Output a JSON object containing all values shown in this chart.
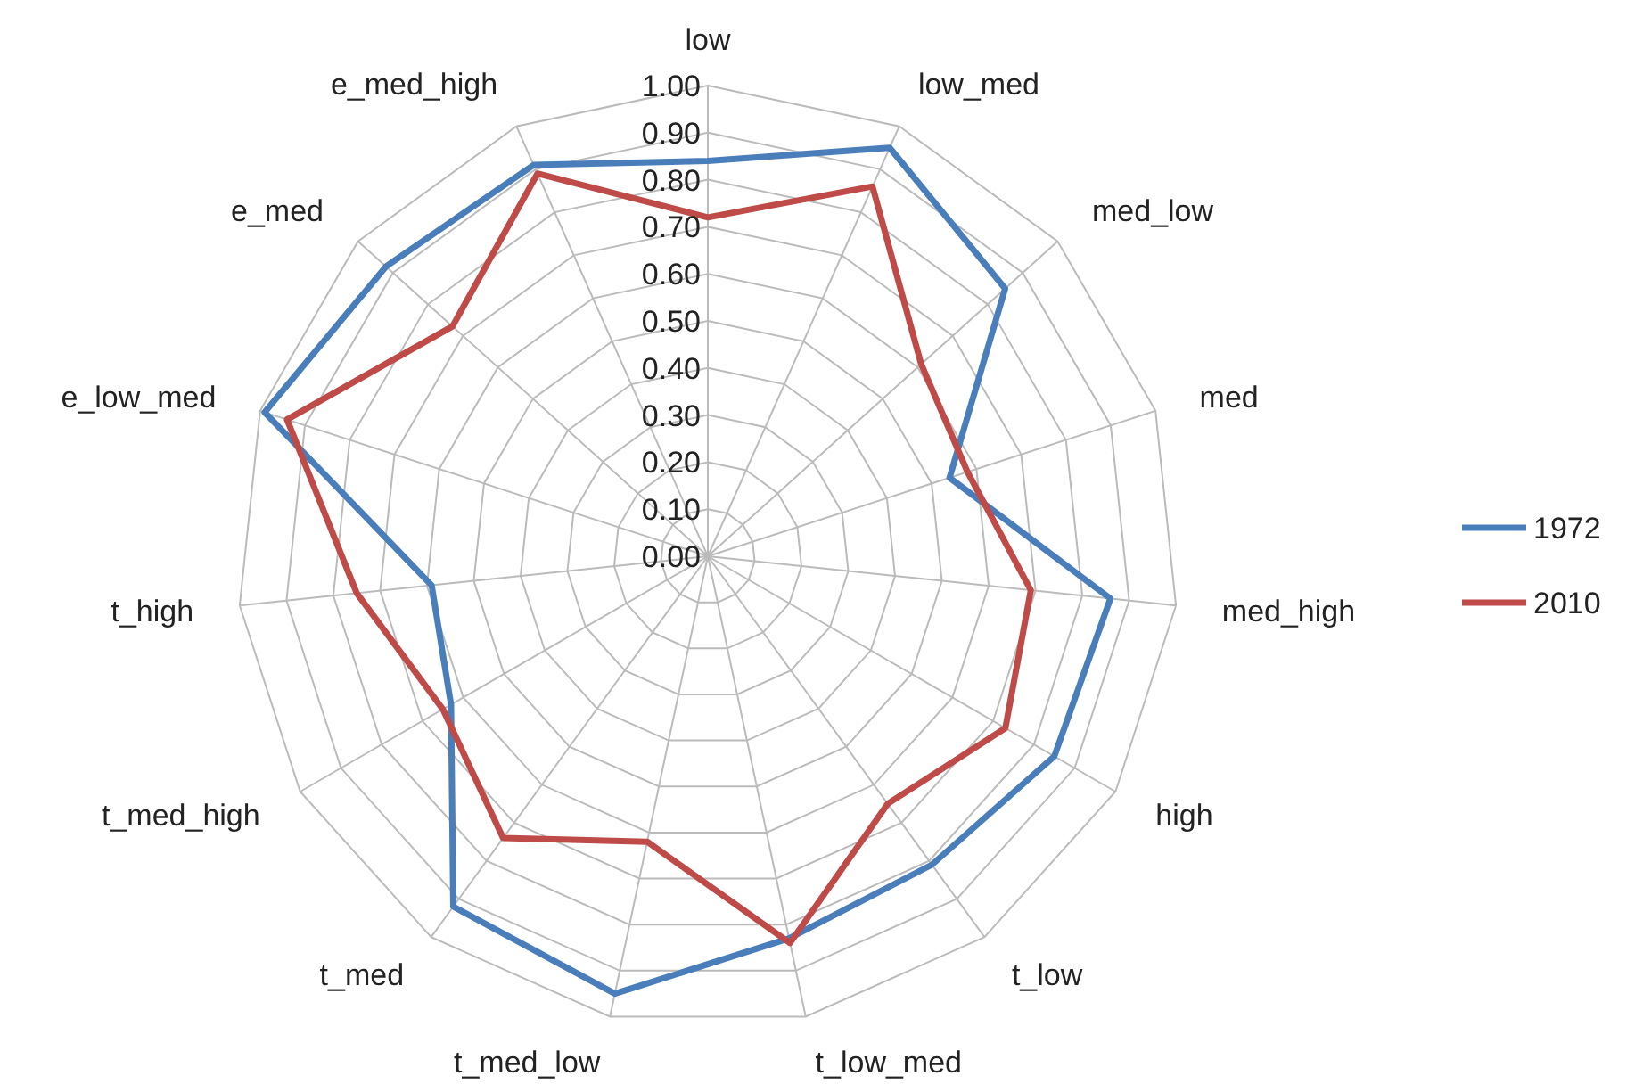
{
  "chart_data": {
    "type": "radar",
    "categories": [
      "low",
      "low_med",
      "med_low",
      "med",
      "med_high",
      "high",
      "t_low",
      "t_low_med",
      "t_med_low",
      "t_med",
      "t_med_high",
      "t_high",
      "e_low_med",
      "e_med",
      "e_med_high"
    ],
    "series": [
      {
        "name": "1972",
        "color": "#4a7ebb",
        "values": [
          0.84,
          0.95,
          0.85,
          0.54,
          0.86,
          0.85,
          0.81,
          0.83,
          0.95,
          0.92,
          0.63,
          0.59,
          0.99,
          0.92,
          0.91
        ]
      },
      {
        "name": "2010",
        "color": "#be4b48",
        "values": [
          0.72,
          0.86,
          0.61,
          0.58,
          0.69,
          0.73,
          0.65,
          0.84,
          0.62,
          0.74,
          0.65,
          0.75,
          0.94,
          0.73,
          0.89
        ]
      }
    ],
    "ylim": [
      0,
      1
    ],
    "yticks": [
      {
        "value": 0,
        "label": "0.00"
      },
      {
        "value": 0.1,
        "label": "0.10"
      },
      {
        "value": 0.2,
        "label": "0.20"
      },
      {
        "value": 0.3,
        "label": "0.30"
      },
      {
        "value": 0.4,
        "label": "0.40"
      },
      {
        "value": 0.5,
        "label": "0.50"
      },
      {
        "value": 0.6,
        "label": "0.60"
      },
      {
        "value": 0.7,
        "label": "0.70"
      },
      {
        "value": 0.8,
        "label": "0.80"
      },
      {
        "value": 0.9,
        "label": "0.90"
      },
      {
        "value": 1,
        "label": "1.00"
      }
    ],
    "grid": true,
    "legend": "right",
    "marker": "none",
    "line_style": "solid"
  }
}
